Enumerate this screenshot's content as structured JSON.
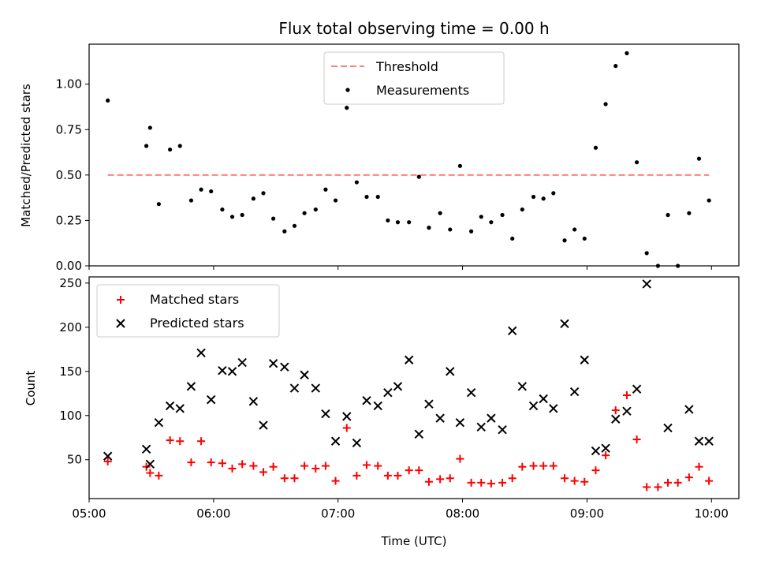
{
  "chart_data": [
    {
      "type": "scatter",
      "title": "Flux total observing time = 0.00 h",
      "xlabel": "",
      "ylabel": "Matched/Predicted stars",
      "ylim": [
        0,
        1.22
      ],
      "yticks": [
        0,
        0.25,
        0.5,
        0.75,
        1.0
      ],
      "ytick_labels": [
        "0.00",
        "0.25",
        "0.50",
        "0.75",
        "1.00"
      ],
      "xlim": [
        5.0,
        10.22
      ],
      "grid": false,
      "legend_position": "upper-center",
      "threshold": {
        "name": "Threshold",
        "value": 0.5,
        "x_range": [
          5.15,
          9.98
        ],
        "color": "#ff8080"
      },
      "series": [
        {
          "name": "Measurements",
          "color": "#000000",
          "marker": "dot",
          "x": [
            5.15,
            5.46,
            5.49,
            5.56,
            5.65,
            5.73,
            5.82,
            5.9,
            5.98,
            6.07,
            6.15,
            6.23,
            6.32,
            6.4,
            6.48,
            6.57,
            6.65,
            6.73,
            6.82,
            6.9,
            6.98,
            7.07,
            7.15,
            7.23,
            7.32,
            7.4,
            7.48,
            7.57,
            7.65,
            7.73,
            7.82,
            7.9,
            7.98,
            8.07,
            8.15,
            8.23,
            8.32,
            8.4,
            8.48,
            8.57,
            8.65,
            8.73,
            8.82,
            8.9,
            8.98,
            9.07,
            9.15,
            9.23,
            9.32,
            9.4,
            9.48,
            9.57,
            9.65,
            9.73,
            9.82,
            9.9,
            9.98
          ],
          "y": [
            0.91,
            0.66,
            0.76,
            0.34,
            0.64,
            0.66,
            0.36,
            0.42,
            0.41,
            0.31,
            0.27,
            0.28,
            0.37,
            0.4,
            0.26,
            0.19,
            0.22,
            0.29,
            0.31,
            0.42,
            0.36,
            0.87,
            0.46,
            0.38,
            0.38,
            0.25,
            0.24,
            0.24,
            0.49,
            0.21,
            0.29,
            0.2,
            0.55,
            0.19,
            0.27,
            0.24,
            0.28,
            0.15,
            0.31,
            0.38,
            0.37,
            0.4,
            0.14,
            0.2,
            0.15,
            0.65,
            0.89,
            1.1,
            1.17,
            0.57,
            0.07,
            0.0,
            0.28,
            0.0,
            0.29,
            0.59,
            0.36
          ]
        }
      ]
    },
    {
      "type": "scatter",
      "title": "",
      "xlabel": "Time (UTC)",
      "ylabel": "Count",
      "ylim": [
        6,
        257
      ],
      "yticks": [
        50,
        100,
        150,
        200,
        250
      ],
      "ytick_labels": [
        "50",
        "100",
        "150",
        "200",
        "250"
      ],
      "xlim": [
        5.0,
        10.22
      ],
      "xticks": [
        5,
        6,
        7,
        8,
        9,
        10
      ],
      "xtick_labels": [
        "05:00",
        "06:00",
        "07:00",
        "08:00",
        "09:00",
        "10:00"
      ],
      "grid": false,
      "legend_position": "upper-left",
      "series": [
        {
          "name": "Matched stars",
          "color": "#ff0000",
          "marker": "plus",
          "x": [
            5.15,
            5.46,
            5.49,
            5.56,
            5.65,
            5.73,
            5.82,
            5.9,
            5.98,
            6.07,
            6.15,
            6.23,
            6.32,
            6.4,
            6.48,
            6.57,
            6.65,
            6.73,
            6.82,
            6.9,
            6.98,
            7.07,
            7.15,
            7.23,
            7.32,
            7.4,
            7.48,
            7.57,
            7.65,
            7.73,
            7.82,
            7.9,
            7.98,
            8.07,
            8.15,
            8.23,
            8.32,
            8.4,
            8.48,
            8.57,
            8.65,
            8.73,
            8.82,
            8.9,
            8.98,
            9.07,
            9.15,
            9.23,
            9.32,
            9.4,
            9.48,
            9.57,
            9.65,
            9.73,
            9.82,
            9.9,
            9.98
          ],
          "y": [
            48,
            42,
            35,
            32,
            72,
            71,
            47,
            71,
            47,
            46,
            40,
            45,
            43,
            36,
            42,
            29,
            29,
            43,
            40,
            43,
            26,
            86,
            32,
            44,
            43,
            32,
            32,
            38,
            38,
            25,
            28,
            29,
            51,
            24,
            24,
            23,
            24,
            29,
            42,
            43,
            43,
            43,
            29,
            26,
            25,
            38,
            55,
            106,
            123,
            73,
            19,
            19,
            24,
            24,
            30,
            42,
            26
          ]
        },
        {
          "name": "Predicted stars",
          "color": "#000000",
          "marker": "x",
          "x": [
            5.15,
            5.46,
            5.49,
            5.56,
            5.65,
            5.73,
            5.82,
            5.9,
            5.98,
            6.07,
            6.15,
            6.23,
            6.32,
            6.4,
            6.48,
            6.57,
            6.65,
            6.73,
            6.82,
            6.9,
            6.98,
            7.07,
            7.15,
            7.23,
            7.32,
            7.4,
            7.48,
            7.57,
            7.65,
            7.73,
            7.82,
            7.9,
            7.98,
            8.07,
            8.15,
            8.23,
            8.32,
            8.4,
            8.48,
            8.57,
            8.65,
            8.73,
            8.82,
            8.9,
            8.98,
            9.07,
            9.15,
            9.23,
            9.32,
            9.4,
            9.48,
            9.57,
            9.65,
            9.73,
            9.82,
            9.9,
            9.98
          ],
          "y": [
            54,
            62,
            45,
            92,
            111,
            108,
            133,
            171,
            118,
            151,
            150,
            160,
            116,
            89,
            159,
            155,
            131,
            146,
            131,
            102,
            71,
            99,
            69,
            117,
            111,
            126,
            133,
            163,
            79,
            113,
            97,
            150,
            92,
            126,
            87,
            97,
            84,
            196,
            133,
            111,
            119,
            108,
            204,
            127,
            163,
            60,
            63,
            96,
            105,
            130,
            249,
            null,
            86,
            null,
            107,
            71,
            71
          ]
        }
      ]
    }
  ]
}
